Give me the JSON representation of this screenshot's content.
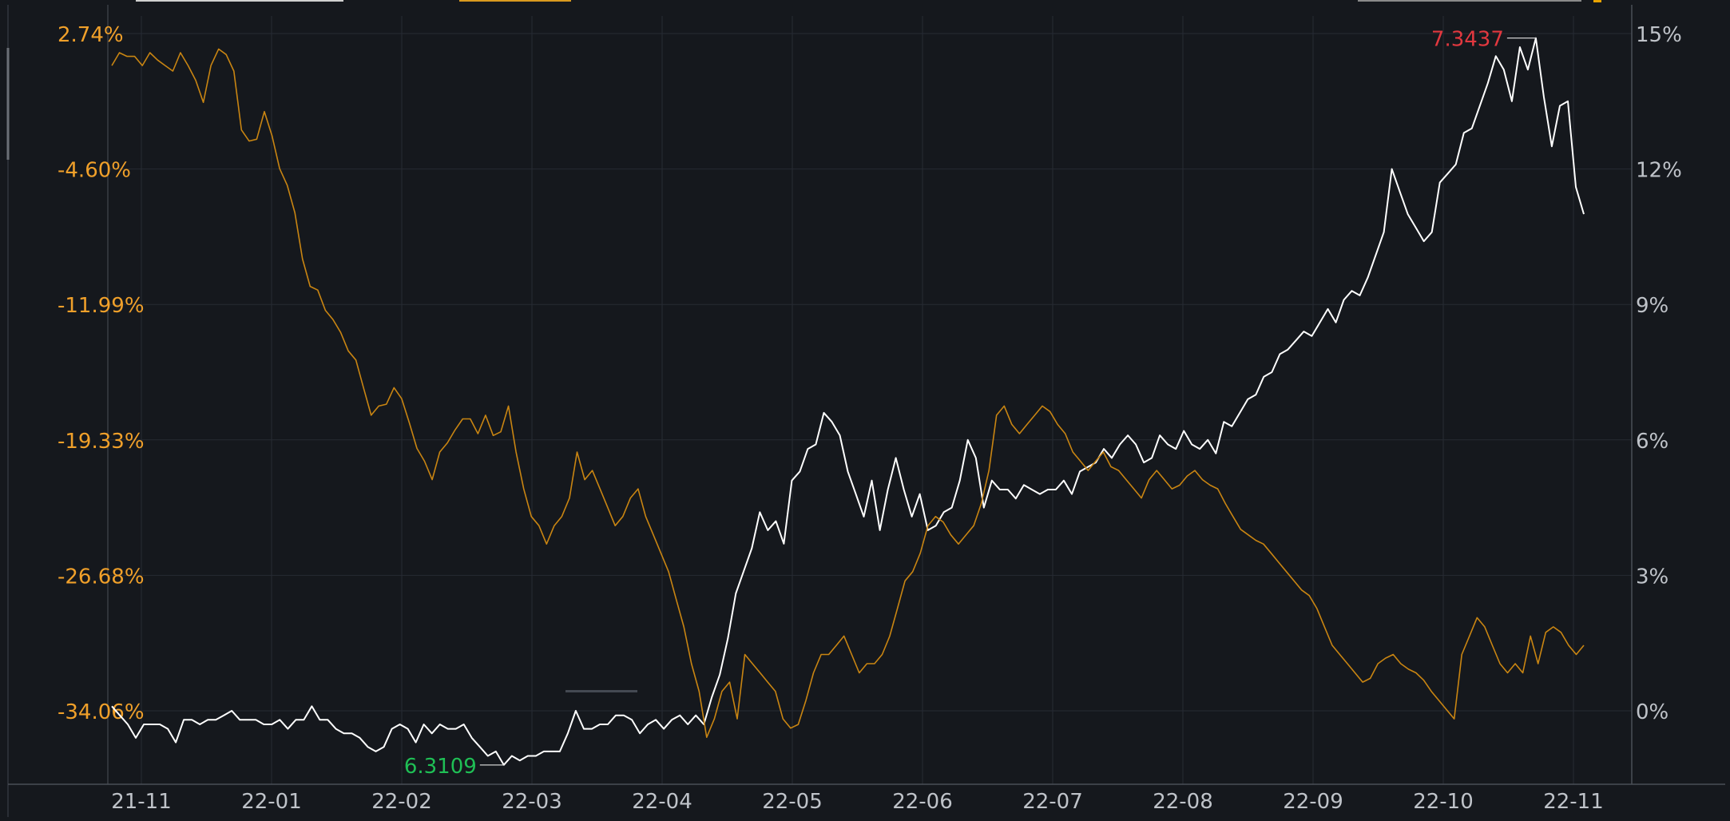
{
  "colors": {
    "background": "#15181d",
    "grid": "#272b33",
    "axis": "#4a4f57",
    "left_axis_text": "#f0a02a",
    "right_axis_text": "#bfc3c9",
    "x_axis_text": "#bfc3c9",
    "white_series": "#ffffff",
    "orange_series": "#c98512",
    "max_marker": "#e2383f",
    "min_marker": "#1fbf55"
  },
  "chart_data": {
    "type": "line",
    "title": "",
    "x_tick_labels": [
      "21-11",
      "22-01",
      "22-02",
      "22-03",
      "22-04",
      "22-05",
      "22-06",
      "22-07",
      "22-08",
      "22-09",
      "22-10",
      "22-11"
    ],
    "left_axis": {
      "tick_labels": [
        "2.74%",
        "-4.60%",
        "-11.99%",
        "-19.33%",
        "-26.68%",
        "-34.06%"
      ],
      "ylim": [
        -34.06,
        2.74
      ]
    },
    "right_axis": {
      "tick_labels": [
        "15%",
        "12%",
        "9%",
        "6%",
        "3%",
        "0%"
      ],
      "ylim": [
        0,
        15
      ]
    },
    "grid": true,
    "annotations": {
      "max_label": "7.3437",
      "min_label": "6.3109"
    },
    "series": [
      {
        "axis": "right",
        "color": "#ffffff",
        "values": [
          0.1,
          -0.1,
          -0.3,
          -0.6,
          -0.3,
          -0.3,
          -0.3,
          -0.4,
          -0.7,
          -0.2,
          -0.2,
          -0.3,
          -0.2,
          -0.2,
          -0.1,
          0.0,
          -0.2,
          -0.2,
          -0.2,
          -0.3,
          -0.3,
          -0.2,
          -0.4,
          -0.2,
          -0.2,
          0.1,
          -0.2,
          -0.2,
          -0.4,
          -0.5,
          -0.5,
          -0.6,
          -0.8,
          -0.9,
          -0.8,
          -0.4,
          -0.3,
          -0.4,
          -0.7,
          -0.3,
          -0.5,
          -0.3,
          -0.4,
          -0.4,
          -0.3,
          -0.6,
          -0.8,
          -1.0,
          -0.9,
          -1.2,
          -1.0,
          -1.1,
          -1.0,
          -1.0,
          -0.9,
          -0.9,
          -0.9,
          -0.5,
          0.0,
          -0.4,
          -0.4,
          -0.3,
          -0.3,
          -0.1,
          -0.1,
          -0.2,
          -0.5,
          -0.3,
          -0.2,
          -0.4,
          -0.2,
          -0.1,
          -0.3,
          -0.1,
          -0.3,
          0.3,
          0.8,
          1.6,
          2.6,
          3.1,
          3.6,
          4.4,
          4.0,
          4.2,
          3.7,
          5.1,
          5.3,
          5.8,
          5.9,
          6.6,
          6.4,
          6.1,
          5.3,
          4.8,
          4.3,
          5.1,
          4.0,
          4.9,
          5.6,
          4.9,
          4.3,
          4.8,
          4.0,
          4.1,
          4.4,
          4.5,
          5.1,
          6.0,
          5.6,
          4.5,
          5.1,
          4.9,
          4.9,
          4.7,
          5.0,
          4.9,
          4.8,
          4.9,
          4.9,
          5.1,
          4.8,
          5.3,
          5.4,
          5.5,
          5.8,
          5.6,
          5.9,
          6.1,
          5.9,
          5.5,
          5.6,
          6.1,
          5.9,
          5.8,
          6.2,
          5.9,
          5.8,
          6.0,
          5.7,
          6.4,
          6.3,
          6.6,
          6.9,
          7.0,
          7.4,
          7.5,
          7.9,
          8.0,
          8.2,
          8.4,
          8.3,
          8.6,
          8.9,
          8.6,
          9.1,
          9.3,
          9.2,
          9.6,
          10.1,
          10.6,
          12.0,
          11.5,
          11.0,
          10.7,
          10.4,
          10.6,
          11.7,
          11.9,
          12.1,
          12.8,
          12.9,
          13.4,
          13.9,
          14.5,
          14.2,
          13.5,
          14.7,
          14.2,
          14.9,
          13.6,
          12.5,
          13.4,
          13.5,
          11.6,
          11.0
        ]
      },
      {
        "axis": "left",
        "color": "#c98512",
        "values": [
          1.0,
          1.7,
          1.5,
          1.5,
          1.0,
          1.7,
          1.3,
          1.0,
          0.7,
          1.7,
          1.0,
          0.2,
          -1.0,
          1.0,
          1.9,
          1.6,
          0.7,
          -2.5,
          -3.1,
          -3.0,
          -1.5,
          -2.8,
          -4.6,
          -5.5,
          -7.0,
          -9.5,
          -11.0,
          -11.2,
          -12.3,
          -12.8,
          -13.5,
          -14.5,
          -15.0,
          -16.5,
          -18.0,
          -17.5,
          -17.4,
          -16.5,
          -17.1,
          -18.4,
          -19.8,
          -20.5,
          -21.5,
          -20.0,
          -19.5,
          -18.8,
          -18.2,
          -18.2,
          -19.0,
          -18.0,
          -19.1,
          -18.9,
          -17.5,
          -20.0,
          -22.0,
          -23.5,
          -24.0,
          -25.0,
          -24.0,
          -23.5,
          -22.5,
          -20.0,
          -21.5,
          -21.0,
          -22.0,
          -23.0,
          -24.0,
          -23.5,
          -22.5,
          -22.0,
          -23.5,
          -24.5,
          -25.5,
          -26.5,
          -28.0,
          -29.5,
          -31.5,
          -33.0,
          -35.5,
          -34.5,
          -33.0,
          -32.5,
          -34.5,
          -31.0,
          -31.5,
          -32.0,
          -32.5,
          -33.0,
          -34.5,
          -35.0,
          -34.8,
          -33.5,
          -32.0,
          -31.0,
          -31.0,
          -30.5,
          -30.0,
          -31.0,
          -32.0,
          -31.5,
          -31.5,
          -31.0,
          -30.0,
          -28.5,
          -27.0,
          -26.5,
          -25.5,
          -24.0,
          -23.5,
          -23.8,
          -24.5,
          -25.0,
          -24.5,
          -24.0,
          -22.8,
          -21.0,
          -18.0,
          -17.5,
          -18.5,
          -19.0,
          -18.5,
          -18.0,
          -17.5,
          -17.8,
          -18.5,
          -19.0,
          -20.0,
          -20.5,
          -21.0,
          -20.5,
          -20.0,
          -20.8,
          -21.0,
          -21.5,
          -22.0,
          -22.5,
          -21.5,
          -21.0,
          -21.5,
          -22.0,
          -21.8,
          -21.3,
          -21.0,
          -21.5,
          -21.8,
          -22.0,
          -22.8,
          -23.5,
          -24.2,
          -24.5,
          -24.8,
          -25.0,
          -25.5,
          -26.0,
          -26.5,
          -27.0,
          -27.5,
          -27.8,
          -28.5,
          -29.5,
          -30.5,
          -31.0,
          -31.5,
          -32.0,
          -32.5,
          -32.3,
          -31.5,
          -31.2,
          -31.0,
          -31.5,
          -31.8,
          -32.0,
          -32.4,
          -33.0,
          -33.5,
          -34.0,
          -34.5,
          -31.0,
          -30.0,
          -29.0,
          -29.5,
          -30.5,
          -31.5,
          -32.0,
          -31.5,
          -32.0,
          -30.0,
          -31.5,
          -29.8,
          -29.5,
          -29.8,
          -30.5,
          -31.0,
          -30.5
        ]
      }
    ]
  }
}
